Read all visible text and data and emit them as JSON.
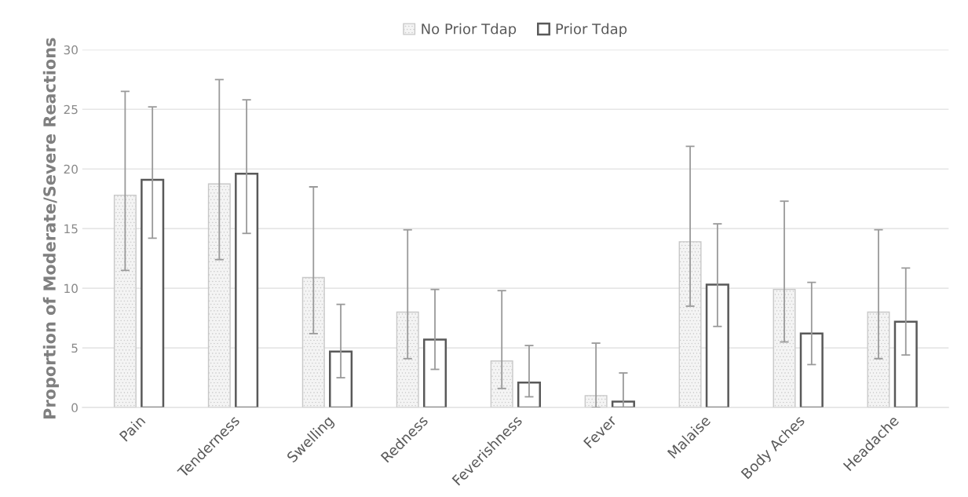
{
  "chart_data": {
    "type": "bar",
    "ylabel": "Proportion of Moderate/Severe Reactions",
    "categories": [
      "Pain",
      "Tenderness",
      "Swelling",
      "Redness",
      "Feverishness",
      "Fever",
      "Malaise",
      "Body Aches",
      "Headache"
    ],
    "series": [
      {
        "name": "No Prior Tdap",
        "color": "#c8c8c8",
        "values": [
          17.8,
          18.75,
          10.9,
          8.0,
          3.9,
          1.0,
          13.9,
          9.9,
          8.0
        ],
        "errors": [
          [
            11.5,
            26.5
          ],
          [
            12.4,
            27.5
          ],
          [
            6.2,
            18.5
          ],
          [
            4.1,
            14.9
          ],
          [
            1.6,
            9.8
          ],
          [
            0,
            5.4
          ],
          [
            8.5,
            21.9
          ],
          [
            5.5,
            17.3
          ],
          [
            4.1,
            14.9
          ]
        ]
      },
      {
        "name": "Prior Tdap",
        "color": "#595959",
        "values": [
          19.1,
          19.6,
          4.7,
          5.7,
          2.1,
          0.5,
          10.3,
          6.2,
          7.2
        ],
        "errors": [
          [
            14.2,
            25.2
          ],
          [
            14.6,
            25.8
          ],
          [
            2.5,
            8.65
          ],
          [
            3.2,
            9.9
          ],
          [
            0.9,
            5.2
          ],
          [
            0,
            2.9
          ],
          [
            6.8,
            15.4
          ],
          [
            3.6,
            10.5
          ],
          [
            4.4,
            11.7
          ]
        ]
      }
    ],
    "ylim": [
      0,
      30
    ],
    "yticks": [
      0,
      5,
      10,
      15,
      20,
      25,
      30
    ],
    "grid": "y",
    "legend": "top"
  }
}
